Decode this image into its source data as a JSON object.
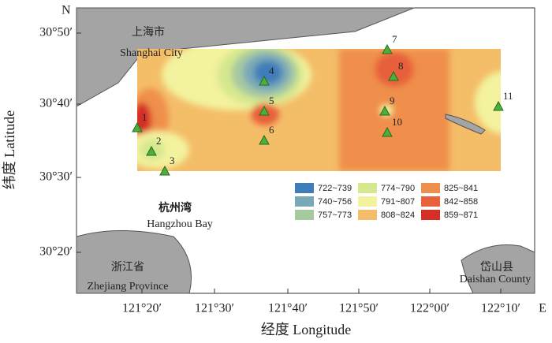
{
  "map": {
    "north": "N",
    "east": "E",
    "x_label": "经度 Longitude",
    "y_label": "纬度 Latitude",
    "x_ticks": [
      "121°20′",
      "121°30′",
      "121°40′",
      "121°50′",
      "122°00′",
      "122°10′"
    ],
    "y_ticks": [
      "30°50′",
      "30°40′",
      "30°30′",
      "30°20′"
    ],
    "places": [
      "上海市",
      "Shanghai City",
      "杭州湾",
      "Hangzhou Bay",
      "浙江省",
      "Zhejiang Province",
      "岱山县",
      "Daishan County"
    ],
    "stations": [
      "1",
      "2",
      "3",
      "4",
      "5",
      "6",
      "7",
      "8",
      "9",
      "10",
      "11"
    ],
    "legend": [
      {
        "label": "722~739",
        "color": "#3f7db8"
      },
      {
        "label": "740~756",
        "color": "#79a9b8"
      },
      {
        "label": "757~773",
        "color": "#a7c9a0"
      },
      {
        "label": "774~790",
        "color": "#d6e88e"
      },
      {
        "label": "791~807",
        "color": "#f3f29e"
      },
      {
        "label": "808~824",
        "color": "#f4bd68"
      },
      {
        "label": "825~841",
        "color": "#ef8f4c"
      },
      {
        "label": "842~858",
        "color": "#e7613a"
      },
      {
        "label": "859~871",
        "color": "#d62f27"
      }
    ]
  }
}
